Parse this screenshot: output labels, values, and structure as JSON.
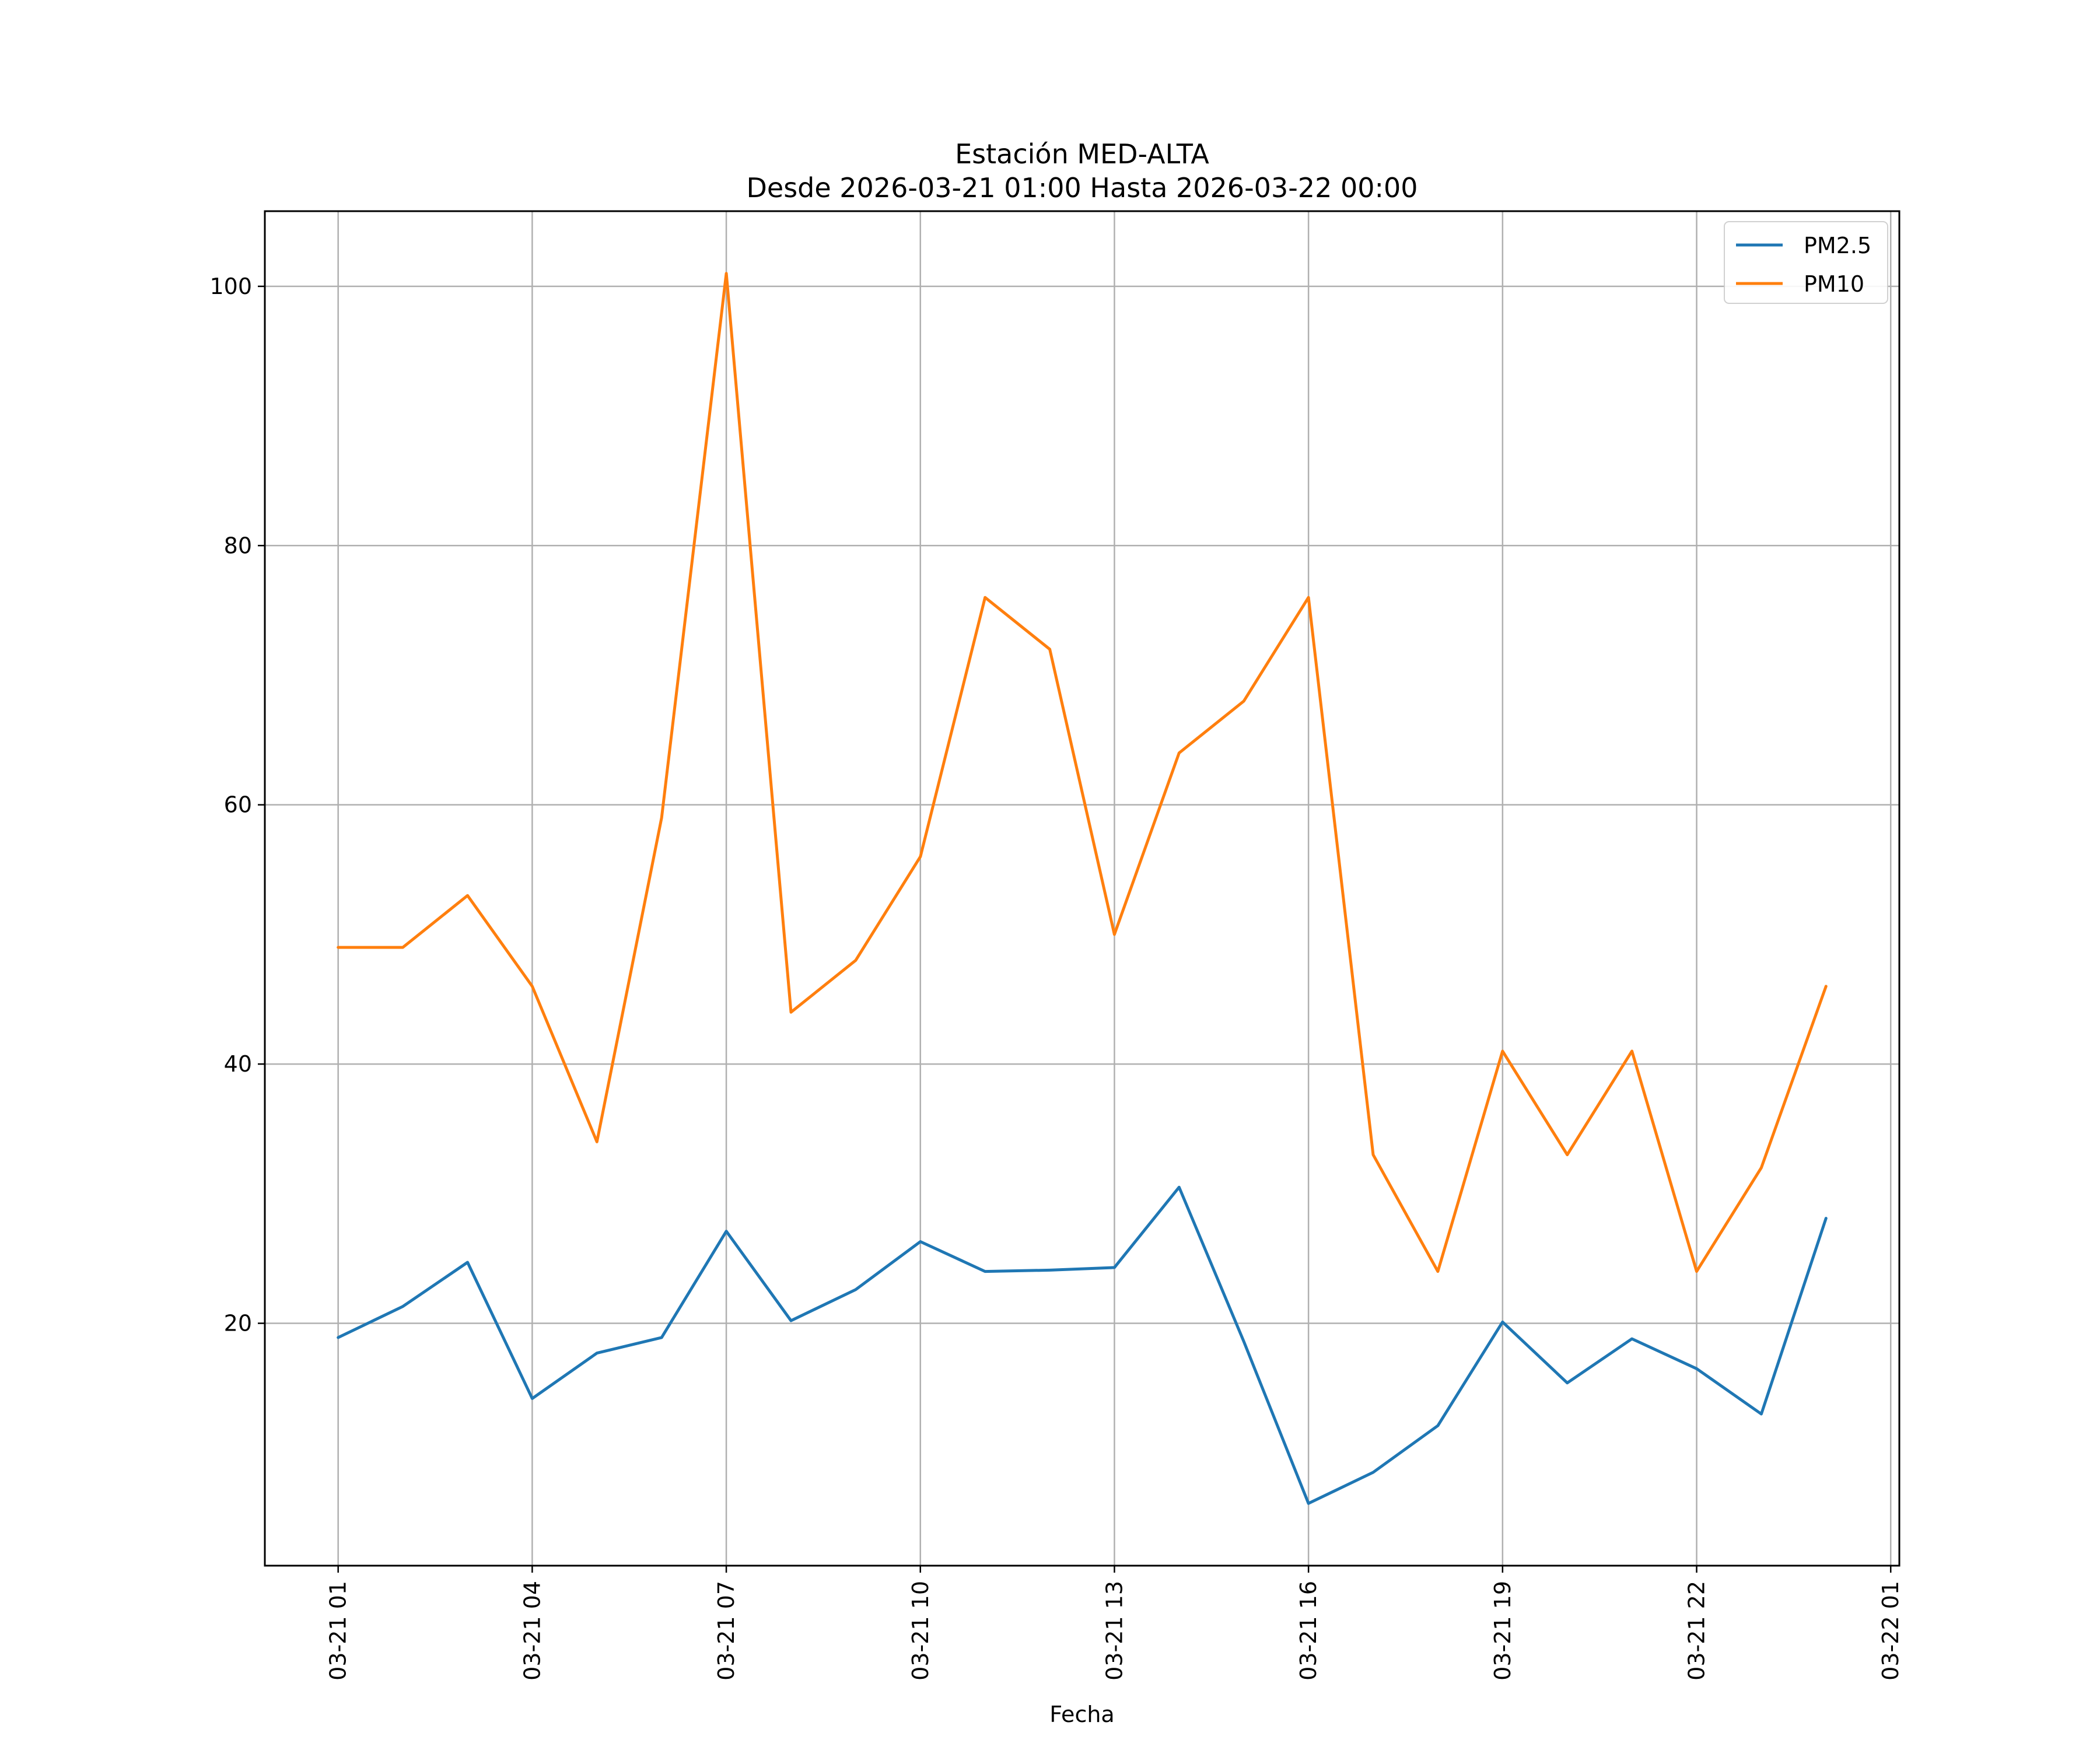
{
  "chart_data": {
    "type": "line",
    "title": "Estación MED-ALTA",
    "subtitle": "Desde 2026-03-21 01:00 Hasta 2026-03-22 00:00",
    "xlabel": "Fecha",
    "ylabel": "",
    "x": [
      "2026-03-21 01:00",
      "2026-03-21 02:00",
      "2026-03-21 03:00",
      "2026-03-21 04:00",
      "2026-03-21 05:00",
      "2026-03-21 06:00",
      "2026-03-21 07:00",
      "2026-03-21 08:00",
      "2026-03-21 09:00",
      "2026-03-21 10:00",
      "2026-03-21 11:00",
      "2026-03-21 12:00",
      "2026-03-21 13:00",
      "2026-03-21 14:00",
      "2026-03-21 15:00",
      "2026-03-21 16:00",
      "2026-03-21 17:00",
      "2026-03-21 18:00",
      "2026-03-21 19:00",
      "2026-03-21 20:00",
      "2026-03-21 21:00",
      "2026-03-21 22:00",
      "2026-03-21 23:00",
      "2026-03-22 00:00"
    ],
    "series": [
      {
        "name": "PM2.5",
        "color": "#1f77b4",
        "values": [
          18.9,
          21.3,
          24.7,
          14.2,
          17.7,
          18.9,
          27.1,
          20.2,
          22.6,
          26.3,
          24.0,
          24.1,
          24.3,
          30.5,
          18.6,
          6.1,
          8.5,
          12.1,
          20.1,
          15.4,
          18.8,
          16.5,
          13.0,
          28.1
        ]
      },
      {
        "name": "PM10",
        "color": "#ff7f0e",
        "values": [
          49,
          49,
          53,
          46,
          34,
          59,
          101,
          44,
          48,
          56,
          76,
          72,
          50,
          64,
          68,
          76,
          33,
          24,
          41,
          33,
          41,
          24,
          32,
          46
        ]
      }
    ],
    "xticks": [
      {
        "label": "03-21 01",
        "t": "2026-03-21 01:00"
      },
      {
        "label": "03-21 04",
        "t": "2026-03-21 04:00"
      },
      {
        "label": "03-21 07",
        "t": "2026-03-21 07:00"
      },
      {
        "label": "03-21 10",
        "t": "2026-03-21 10:00"
      },
      {
        "label": "03-21 13",
        "t": "2026-03-21 13:00"
      },
      {
        "label": "03-21 16",
        "t": "2026-03-21 16:00"
      },
      {
        "label": "03-21 19",
        "t": "2026-03-21 19:00"
      },
      {
        "label": "03-21 22",
        "t": "2026-03-21 22:00"
      },
      {
        "label": "03-22 01",
        "t": "2026-03-22 01:00"
      }
    ],
    "yticks": [
      20,
      40,
      60,
      80,
      100
    ],
    "xlim": [
      "2026-03-20 23:52",
      "2026-03-22 01:08"
    ],
    "ylim": [
      1.3,
      105.8
    ],
    "grid": true,
    "legend": "top-right"
  }
}
